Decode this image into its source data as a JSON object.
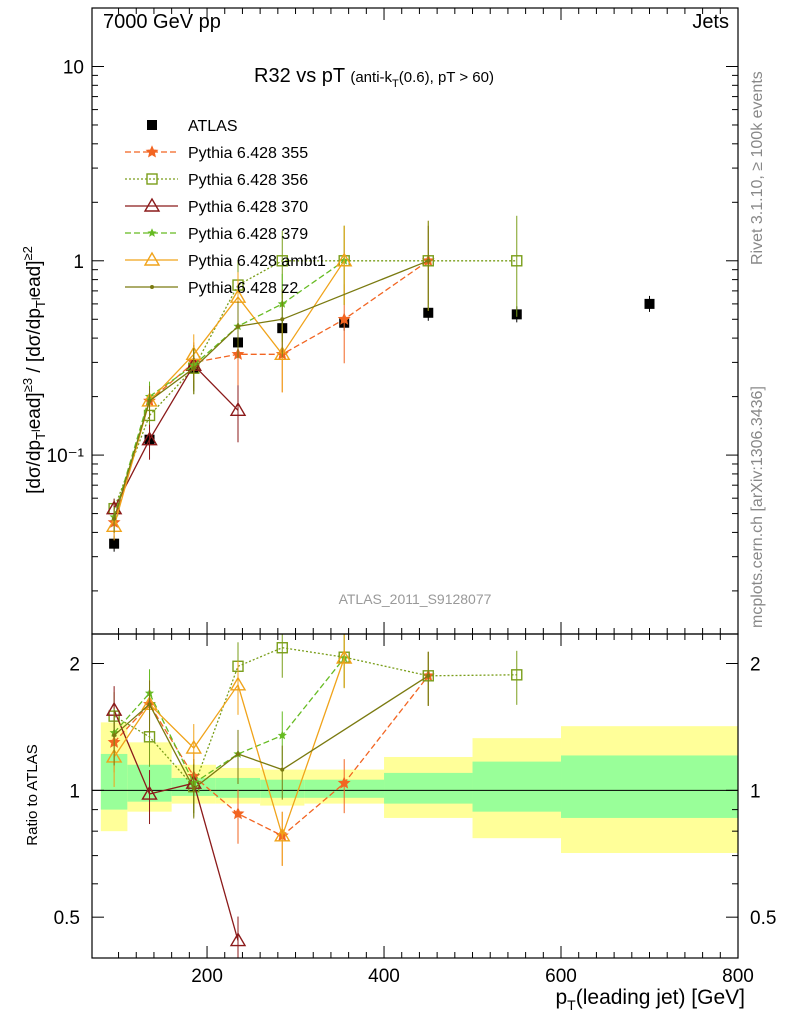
{
  "header": {
    "left": "7000 GeV pp",
    "right": "Jets"
  },
  "side_text": {
    "rivet": "Rivet 3.1.10, ≥ 100k events",
    "mcplots": "mcplots.cern.ch [arXiv:1306.3436]"
  },
  "analysis_label": "ATLAS_2011_S9128077",
  "chart_data": [
    {
      "id": "main",
      "type": "scatter",
      "title": "R32 vs pT (anti-k_T(0.6), pT > 60)",
      "ylabel": "[dσ/dp_T^lead]^{≥3} / [dσ/dp_T^lead]^{≥2}",
      "xlim": [
        70,
        800
      ],
      "ylim": [
        0.012,
        20
      ],
      "yscale": "log",
      "yticks": [
        0.1,
        1,
        10
      ],
      "ytick_labels": [
        "10⁻¹",
        "1",
        "10"
      ],
      "legend_position": "top-left",
      "series": [
        {
          "name": "ATLAS",
          "color": "#000000",
          "marker": "filled-square",
          "line": "none",
          "x": [
            95,
            135,
            185,
            235,
            285,
            355,
            450,
            550,
            700
          ],
          "y": [
            0.035,
            0.12,
            0.28,
            0.38,
            0.45,
            0.48,
            0.54,
            0.53,
            0.6
          ]
        },
        {
          "name": "Pythia 6.428 355",
          "color": "#f26522",
          "marker": "star",
          "line": "dashed",
          "x": [
            95,
            135,
            185,
            235,
            285,
            355,
            450
          ],
          "y": [
            0.045,
            0.19,
            0.3,
            0.33,
            0.33,
            0.5,
            1.0
          ]
        },
        {
          "name": "Pythia 6.428 356",
          "color": "#7a9e1a",
          "marker": "open-square",
          "line": "dotted",
          "x": [
            95,
            135,
            185,
            235,
            285,
            355,
            450,
            550
          ],
          "y": [
            0.053,
            0.16,
            0.28,
            0.75,
            1.0,
            1.0,
            1.0,
            1.0
          ]
        },
        {
          "name": "Pythia 6.428 370",
          "color": "#8b1a1a",
          "marker": "open-triangle",
          "line": "solid",
          "x": [
            95,
            135,
            185,
            235
          ],
          "y": [
            0.053,
            0.12,
            0.29,
            0.17
          ]
        },
        {
          "name": "Pythia 6.428 379",
          "color": "#66bb22",
          "marker": "small-star",
          "line": "dashed",
          "x": [
            95,
            135,
            185,
            235,
            285,
            355
          ],
          "y": [
            0.048,
            0.2,
            0.29,
            0.46,
            0.6,
            1.0
          ]
        },
        {
          "name": "Pythia 6.428 ambt1",
          "color": "#f0a31a",
          "marker": "open-triangle",
          "line": "solid",
          "x": [
            95,
            135,
            185,
            235,
            285,
            355
          ],
          "y": [
            0.043,
            0.19,
            0.33,
            0.65,
            0.33,
            1.0
          ]
        },
        {
          "name": "Pythia 6.428 z2",
          "color": "#7a7a10",
          "marker": "dot",
          "line": "solid",
          "x": [
            95,
            135,
            185,
            235,
            285,
            450
          ],
          "y": [
            0.047,
            0.19,
            0.28,
            0.46,
            0.5,
            1.0
          ]
        }
      ]
    },
    {
      "id": "ratio",
      "type": "line",
      "xlabel": "p_T(leading jet) [GeV]",
      "ylabel": "Ratio to ATLAS",
      "xlim": [
        70,
        800
      ],
      "ylim": [
        0.4,
        2.35
      ],
      "yscale": "log",
      "xticks": [
        200,
        400,
        600,
        800
      ],
      "yticks": [
        0.5,
        1,
        2
      ],
      "ytick_labels": [
        "0.5",
        "1",
        "2"
      ],
      "bands": {
        "x_edges": [
          80,
          110,
          160,
          210,
          260,
          310,
          400,
          500,
          600,
          800
        ],
        "yellow_lo": [
          0.8,
          0.89,
          0.93,
          0.93,
          0.92,
          0.93,
          0.86,
          0.77,
          0.71
        ],
        "yellow_hi": [
          1.45,
          1.3,
          1.15,
          1.13,
          1.12,
          1.12,
          1.2,
          1.33,
          1.42
        ],
        "green_lo": [
          0.9,
          0.94,
          0.97,
          0.96,
          0.96,
          0.96,
          0.93,
          0.89,
          0.86
        ],
        "green_hi": [
          1.22,
          1.15,
          1.07,
          1.07,
          1.06,
          1.06,
          1.1,
          1.17,
          1.21
        ]
      },
      "series": [
        {
          "name": "Pythia 6.428 355",
          "x": [
            95,
            135,
            185,
            235,
            285,
            355,
            450
          ],
          "y": [
            1.3,
            1.6,
            1.08,
            0.88,
            0.78,
            1.04,
            1.87
          ]
        },
        {
          "name": "Pythia 6.428 356",
          "x": [
            95,
            135,
            185,
            235,
            285,
            355,
            450,
            550
          ],
          "y": [
            1.5,
            1.34,
            1.02,
            1.97,
            2.18,
            2.07,
            1.87,
            1.88
          ]
        },
        {
          "name": "Pythia 6.428 370",
          "x": [
            95,
            135,
            185,
            235
          ],
          "y": [
            1.55,
            0.98,
            1.04,
            0.44
          ]
        },
        {
          "name": "Pythia 6.428 379",
          "x": [
            95,
            135,
            185,
            235,
            285,
            355
          ],
          "y": [
            1.37,
            1.7,
            1.04,
            1.22,
            1.35,
            2.06
          ]
        },
        {
          "name": "Pythia 6.428 ambt1",
          "x": [
            95,
            135,
            185,
            235,
            285,
            355
          ],
          "y": [
            1.2,
            1.6,
            1.26,
            1.78,
            0.78,
            2.06
          ]
        },
        {
          "name": "Pythia 6.428 z2",
          "x": [
            95,
            135,
            185,
            235,
            285,
            450
          ],
          "y": [
            1.35,
            1.6,
            1.01,
            1.22,
            1.12,
            1.87
          ]
        }
      ]
    }
  ]
}
